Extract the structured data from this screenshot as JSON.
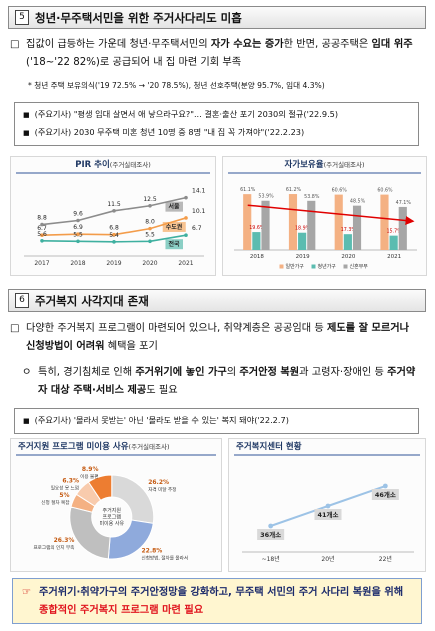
{
  "section5": {
    "number": "5",
    "title": "청년·무주택서민을 위한 주거사다리도 미흡",
    "paragraph": {
      "bullet": "□",
      "runs": [
        {
          "text": "집값이 급등하는 가운데 청년·무주택서민의 ",
          "style": "normal"
        },
        {
          "text": "자가 수요는 증가",
          "style": "bold"
        },
        {
          "text": "한 반면, 공공주택은 ",
          "style": "normal"
        },
        {
          "text": "임대 위주",
          "style": "bold"
        },
        {
          "text": "('18~'22 82%)로 공급되어 내 집 마련 기회 부족",
          "style": "normal"
        }
      ]
    },
    "note": "* 청년 주택 보유의식('19 72.5% → '20 78.5%), 청년 선호주택(분양 95.7%, 임대 4.3%)",
    "news": [
      {
        "bullet": "■",
        "text": "(주요기사) \"평생 임대 살면서 애 낳으라구요?\"... 결혼·출산 포기 2030의 절규('22.9.5)"
      },
      {
        "bullet": "■",
        "text": "(주요기사) 2030 무주택 미혼 청년 10명 중 8명 \"내 집 꼭 가져야\"('22.2.23)"
      }
    ]
  },
  "section6": {
    "number": "6",
    "title": "주거복지 사각지대 존재",
    "paragraph": {
      "bullet": "□",
      "runs": [
        {
          "text": "다양한 주거복지 프로그램이 마련되어 있으나, 취약계층은 공공임대 등 ",
          "style": "normal"
        },
        {
          "text": "제도를 잘 모르거나 신청방법이 어려워",
          "style": "bold"
        },
        {
          "text": " 혜택을 포기",
          "style": "normal"
        }
      ]
    },
    "sub": {
      "bullet": "ㅇ",
      "runs": [
        {
          "text": "특히, 경기침체로 인해 ",
          "style": "normal"
        },
        {
          "text": "주거위기에 놓인 가구",
          "style": "bold"
        },
        {
          "text": "의 ",
          "style": "normal"
        },
        {
          "text": "주거안정 복원",
          "style": "bold"
        },
        {
          "text": "과 고령자·장애인 등 ",
          "style": "normal"
        },
        {
          "text": "주거약자 대상 주택·서비스 제공",
          "style": "bold"
        },
        {
          "text": "도 필요",
          "style": "normal"
        }
      ]
    },
    "news": [
      {
        "bullet": "■",
        "text": "(주요기사) '몰라서 못받는' 아닌 '몰라도 받을 수 있는' 복지 돼야('22.2.7)"
      }
    ]
  },
  "conclusion": {
    "bullet": "☞",
    "runs": [
      {
        "text": "주거위기·취약가구의 주거안정망을 강화하고, 무주택 서민의 주거 사다리 복원을 위해 ",
        "style": "bold"
      },
      {
        "text": "종합적인 주거복지 프로그램 마련 필요",
        "style": "accent"
      }
    ]
  },
  "chart_data": [
    {
      "type": "line",
      "title": "PIR 추이",
      "subtitle": "(주거실태조사)",
      "categories": [
        "2017",
        "2018",
        "2019",
        "2020",
        "2021"
      ],
      "ylim": [
        3,
        16
      ],
      "series": [
        {
          "name": "서울",
          "color": "#8c8c8c",
          "values": [
            8.8,
            9.6,
            11.5,
            12.5,
            14.1
          ]
        },
        {
          "name": "수도권",
          "color": "#f39c4a",
          "values": [
            6.7,
            6.9,
            6.8,
            8.0,
            10.1
          ],
          "value_labels": [
            "6.7",
            "6.9",
            "6.8",
            "8.0",
            "10.1"
          ]
        },
        {
          "name": "전국",
          "color": "#3fb0a0",
          "values": [
            5.6,
            5.5,
            5.4,
            5.5,
            6.7
          ]
        }
      ]
    },
    {
      "type": "bar",
      "title": "자가보유율",
      "subtitle": "(주거실태조사)",
      "categories": [
        "2018",
        "2019",
        "2020",
        "2021"
      ],
      "ylim": [
        0,
        70
      ],
      "legend": "bottom",
      "series": [
        {
          "name": "일반가구",
          "color": "#f4b183",
          "values": [
            61.1,
            61.2,
            60.6,
            60.6
          ],
          "value_labels": [
            "61.1%",
            "61.2%",
            "60.6%",
            "60.6%"
          ]
        },
        {
          "name": "청년가구",
          "color": "#5bbcb0",
          "values": [
            19.6,
            18.9,
            17.3,
            15.7
          ],
          "value_labels": [
            "19.6%",
            "18.9%",
            "17.3%",
            "15.7%"
          ]
        },
        {
          "name": "신혼부부",
          "color": "#a6a6a6",
          "values": [
            53.9,
            53.8,
            48.5,
            47.1
          ],
          "value_labels": [
            "53.9%",
            "53.8%",
            "48.5%",
            "47.1%"
          ]
        }
      ]
    },
    {
      "type": "pie",
      "title": "주거지원 프로그램 미이용 사유",
      "subtitle": "(주거실태조사)",
      "center_label": [
        "주거지원",
        "프로그램",
        "미이용 사유"
      ],
      "categories": [
        "자격 미달 추정",
        "신청방법, 절차를 몰라서",
        "프로그램의 인지 부족",
        "신청 절차 복잡",
        "필요성 못 느낌",
        "이용 불편"
      ],
      "values": [
        26.2,
        22.8,
        26.3,
        5,
        6.3,
        8.9
      ],
      "value_labels": [
        "26.2%",
        "22.8%",
        "26.3%",
        "5%",
        "6.3%",
        "8.9%"
      ],
      "colors": [
        "#d9d9d9",
        "#8faadc",
        "#bfbfbf",
        "#f4b183",
        "#f8cbad",
        "#ed7d31"
      ]
    },
    {
      "type": "line",
      "title": "주거복지센터 현황",
      "categories": [
        "~18년",
        "20년",
        "22년"
      ],
      "ylim": [
        30,
        50
      ],
      "color": "#9dc3e6",
      "values": [
        36,
        41,
        46
      ],
      "value_labels": [
        "36개소",
        "41개소",
        "46개소"
      ]
    }
  ]
}
